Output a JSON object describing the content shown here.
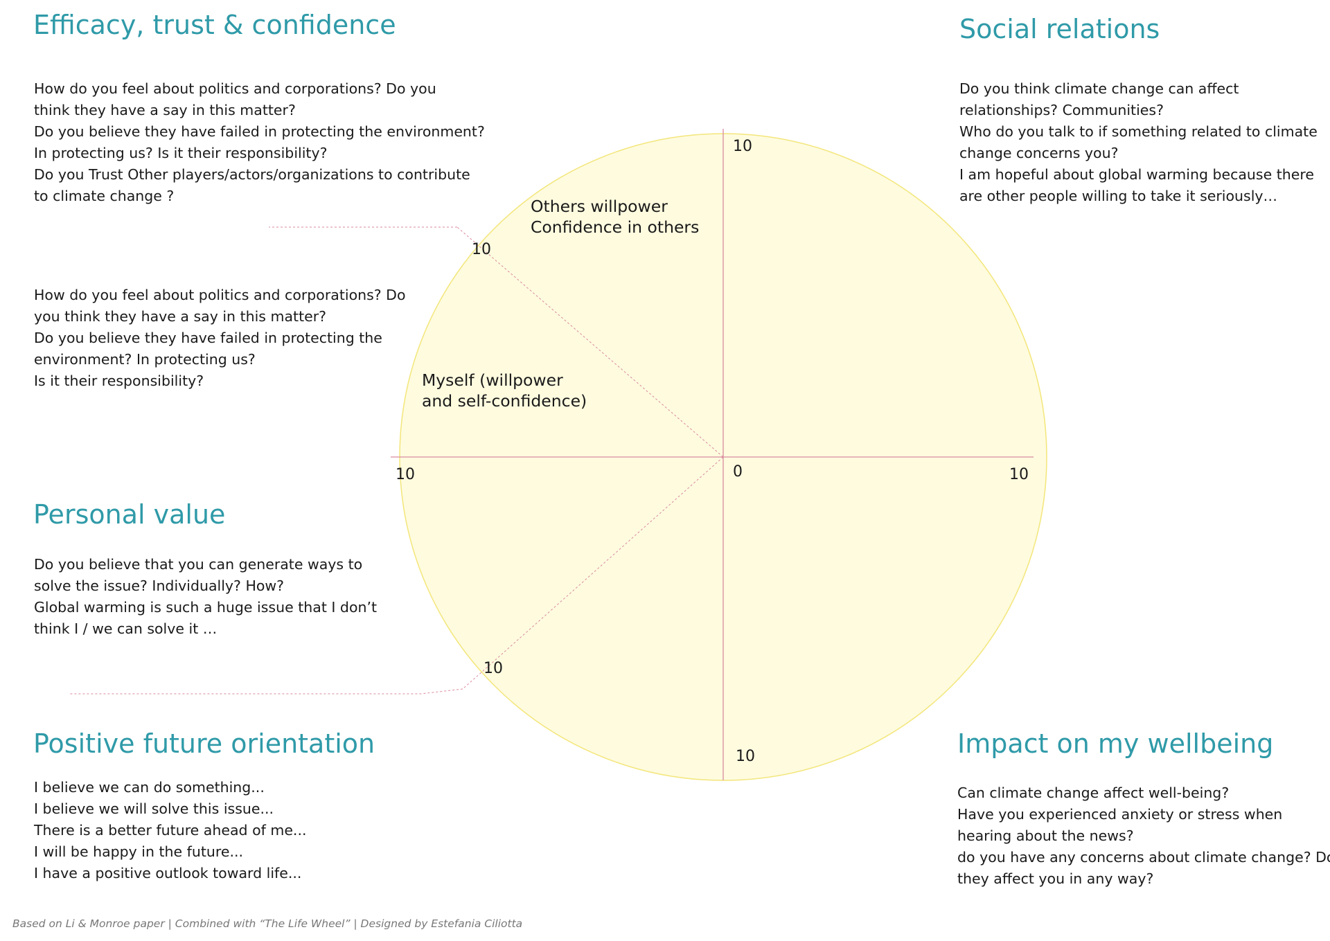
{
  "sections": {
    "efficacy": {
      "title": "Efficacy, trust & confidence",
      "lines": [
        "How do you feel about politics and corporations? Do you",
        "think they have a say in this matter?",
        "Do you believe they have failed in protecting the environment?",
        "In protecting us?  Is it their responsibility?",
        "Do you Trust Other players/actors/organizations to contribute",
        "to climate change ?"
      ]
    },
    "efficacy_second": {
      "lines": [
        "How do you feel about politics and corporations? Do",
        "you think they have a say in this matter?",
        "Do you believe they have failed in protecting the",
        "environment? In protecting us?",
        "Is it their responsibility?"
      ]
    },
    "social": {
      "title": "Social relations",
      "lines": [
        "Do you think climate change can affect",
        "relationships? Communities?",
        "Who do you talk to if something related to climate",
        "change concerns you?",
        "I am hopeful about global warming because there",
        "are other people willing to take it seriously…"
      ]
    },
    "personal": {
      "title": "Personal value",
      "lines": [
        "Do you believe that you can generate ways to",
        "solve the issue? Individually? How?",
        "Global warming is such a huge issue that I don’t",
        "think I / we can solve it …"
      ]
    },
    "future": {
      "title": "Positive future orientation",
      "lines": [
        "I believe we can do something...",
        "I believe we will solve this issue...",
        "There is a better future ahead of me...",
        "I will be happy in the future...",
        "I have a positive outlook toward life..."
      ]
    },
    "wellbeing": {
      "title": "Impact on my wellbeing",
      "lines": [
        "Can climate change affect well-being?",
        "Have you experienced anxiety or stress when",
        "hearing about the news?",
        "do you have any concerns about climate change? Do",
        "they affect you in any way?"
      ]
    }
  },
  "wheel": {
    "center_label": "0",
    "scale_labels": {
      "top": "10",
      "upper_left": "10",
      "left": "10",
      "right": "10",
      "lower_left": "10",
      "bottom": "10"
    },
    "others_label": [
      "Others willpower",
      "Confidence in others"
    ],
    "myself_label": [
      "Myself (willpower",
      "and self-confidence)"
    ],
    "fill_color": "#fefbdf",
    "stroke_color": "#f3e67a",
    "axis_color": "#d98a9e"
  },
  "footer": "Based on Li & Monroe paper | Combined with “The Life Wheel” | Designed by Estefania Ciliotta"
}
